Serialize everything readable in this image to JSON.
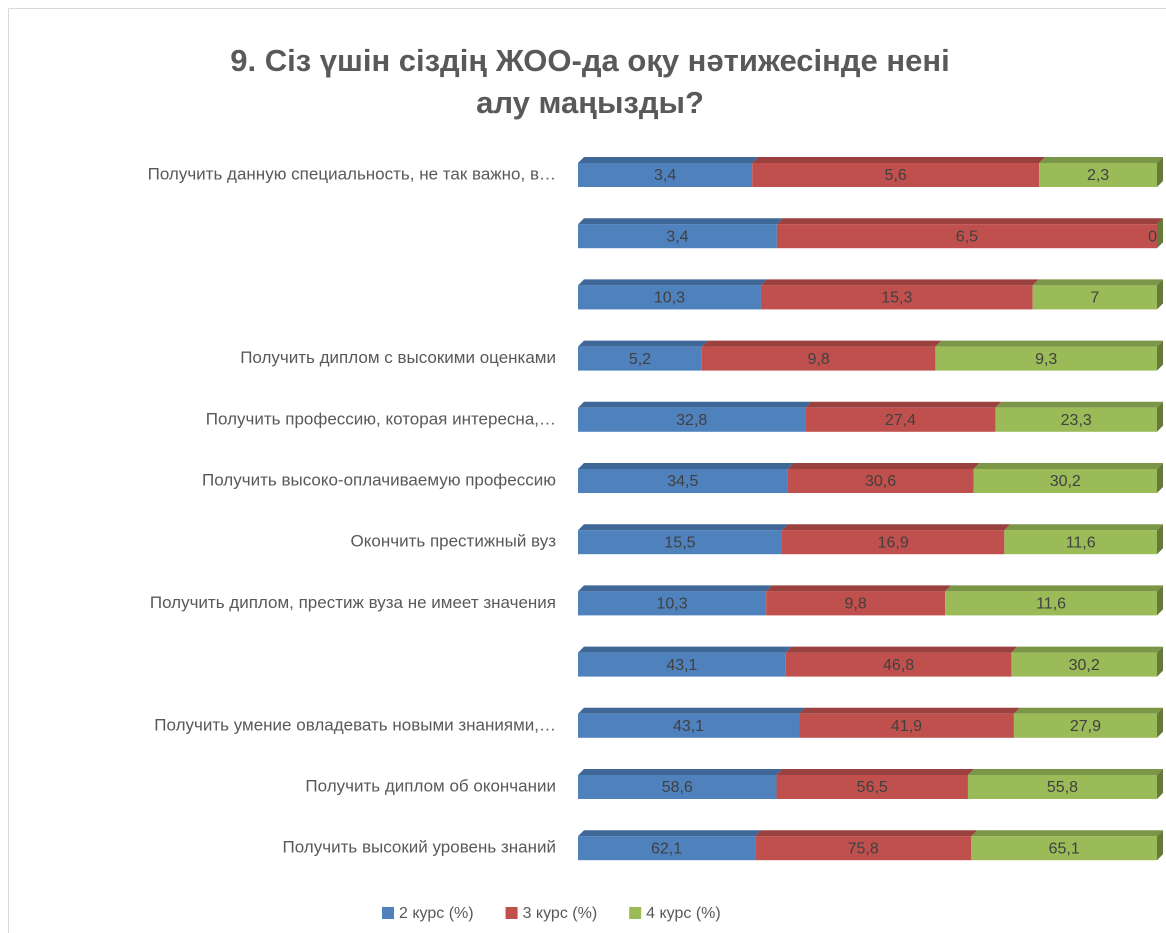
{
  "chart_data": {
    "type": "bar",
    "orientation": "horizontal",
    "stacking": "percent",
    "title": "9. Сіз үшін сіздің ЖОО-да оқу нәтижесінде нені алу маңызды?",
    "categories": [
      "Получить данную специальность, не так важно, в…",
      null,
      null,
      "Получить диплом с высокими оценками",
      "Получить профессию, которая интересна,…",
      "Получить высоко-оплачиваемую профессию",
      "Окончить престижный вуз",
      "Получить диплом, престиж вуза не имеет значения",
      null,
      "Получить умение овладевать новыми знаниями,…",
      "Получить диплом об окончании",
      "Получить высокий уровень знаний"
    ],
    "series": [
      {
        "name": "2 курс (%)",
        "color": "#4f81bd",
        "values": [
          3.4,
          3.4,
          10.3,
          5.2,
          32.8,
          34.5,
          15.5,
          10.3,
          43.1,
          43.1,
          58.6,
          62.1
        ],
        "value_labels": [
          "3,4",
          "3,4",
          "10,3",
          "5,2",
          "32,8",
          "34,5",
          "15,5",
          "10,3",
          "43,1",
          "43,1",
          "58,6",
          "62,1"
        ]
      },
      {
        "name": "3 курс (%)",
        "color": "#c0504d",
        "values": [
          5.6,
          6.5,
          15.3,
          9.8,
          27.4,
          30.6,
          16.9,
          9.8,
          46.8,
          41.9,
          56.5,
          75.8
        ],
        "value_labels": [
          "5,6",
          "6,5",
          "15,3",
          "9,8",
          "27,4",
          "30,6",
          "16,9",
          "9,8",
          "46,8",
          "41,9",
          "56,5",
          "75,8"
        ]
      },
      {
        "name": "4 курс (%)",
        "color": "#9bbb59",
        "values": [
          2.3,
          0,
          7,
          9.3,
          23.3,
          30.2,
          11.6,
          11.6,
          30.2,
          27.9,
          55.8,
          65.1
        ],
        "value_labels": [
          "2,3",
          "0",
          "7",
          "9,3",
          "23,3",
          "30,2",
          "11,6",
          "11,6",
          "30,2",
          "27,9",
          "55,8",
          "65,1"
        ]
      }
    ],
    "legend": "bottom"
  }
}
